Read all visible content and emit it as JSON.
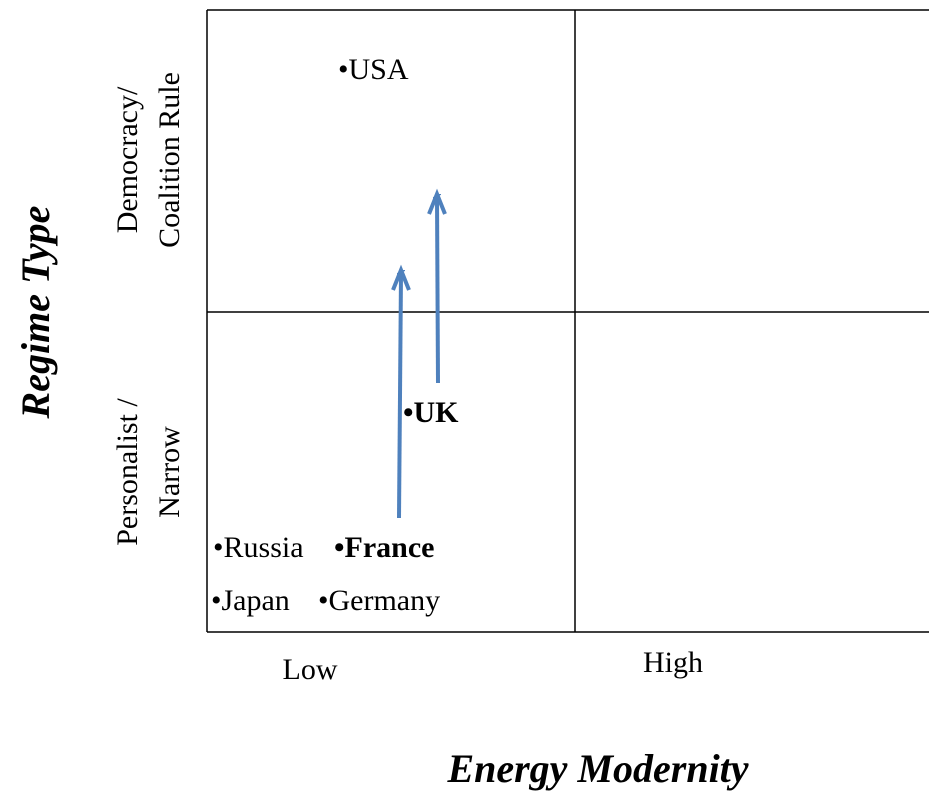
{
  "y_axis": {
    "title": "Regime Type",
    "labels": [
      [
        "Democracy/",
        "Coalition Rule"
      ],
      [
        "Personalist /",
        "Narrow"
      ]
    ]
  },
  "x_axis": {
    "title": "Energy Modernity",
    "labels": [
      "Low",
      "High"
    ]
  },
  "points": [
    {
      "label": "•USA",
      "bold": false
    },
    {
      "label": "•UK",
      "bold": true
    },
    {
      "label": "•Russia",
      "bold": false
    },
    {
      "label": "•France",
      "bold": true
    },
    {
      "label": "•Japan",
      "bold": false
    },
    {
      "label": "•Germany",
      "bold": false
    }
  ]
}
